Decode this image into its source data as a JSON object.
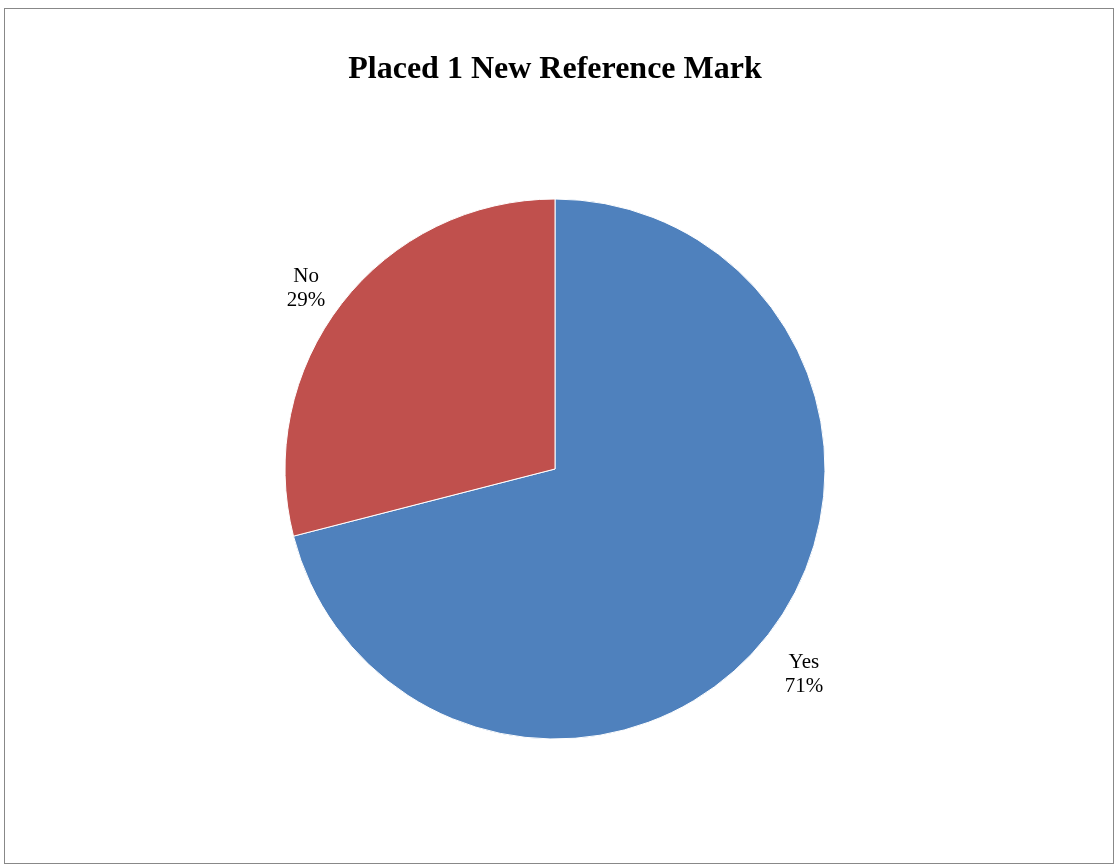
{
  "chart_data": {
    "type": "pie",
    "title": "Placed 1 New Reference Mark",
    "categories": [
      "Yes",
      "No"
    ],
    "values": [
      71,
      29
    ],
    "colors": [
      "#4f81bd",
      "#c0504d"
    ],
    "value_labels": [
      "71%",
      "29%"
    ]
  }
}
